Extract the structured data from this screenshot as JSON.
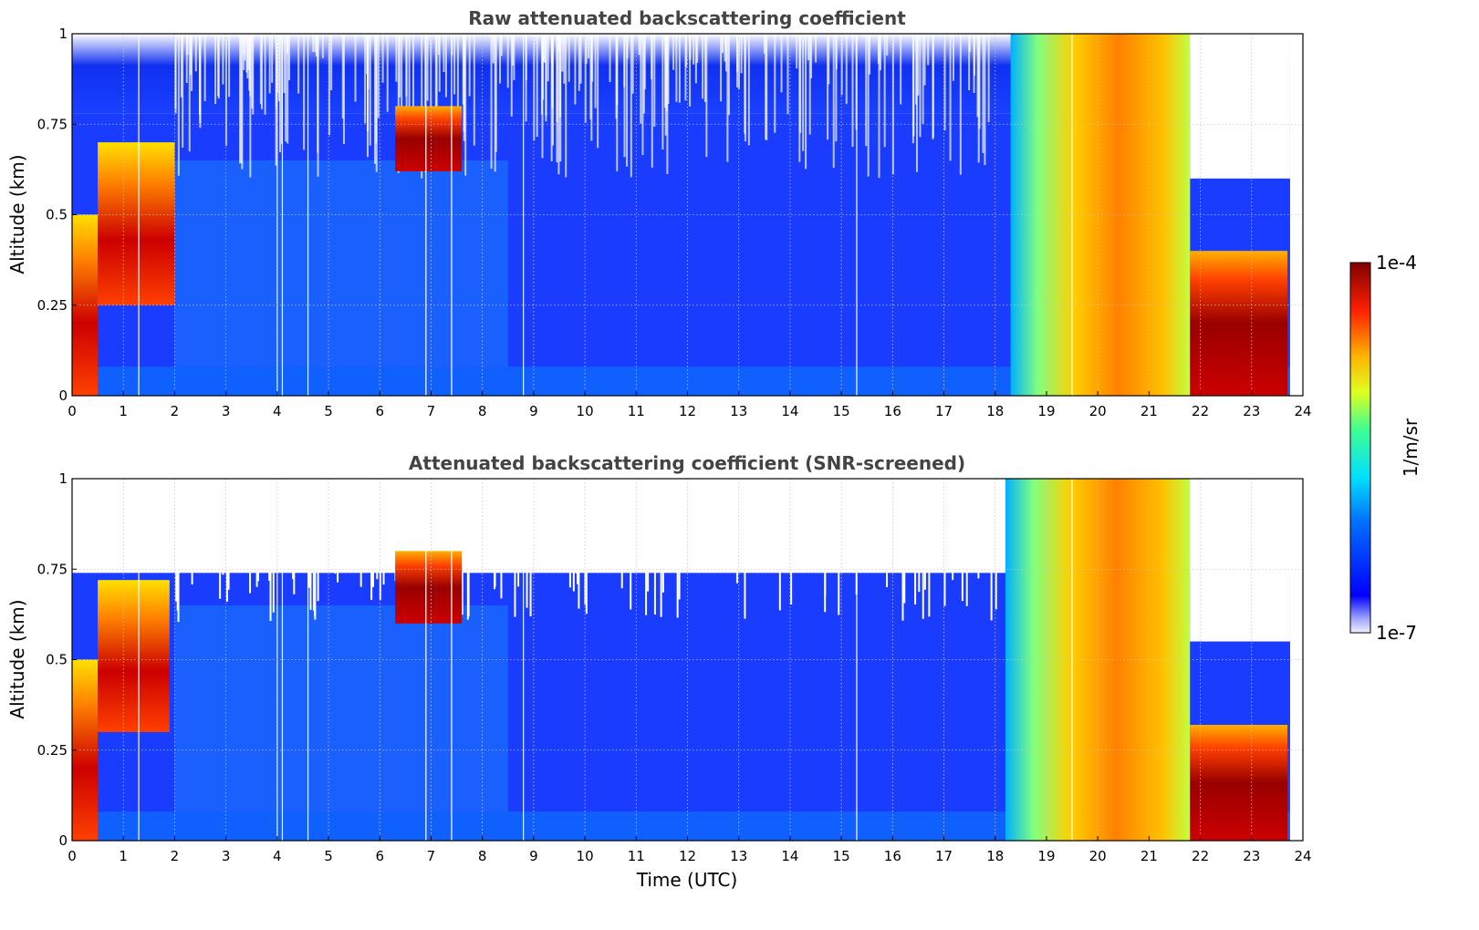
{
  "chart_data": [
    {
      "type": "heatmap",
      "title": "Raw attenuated backscattering coefficient",
      "xlabel": "",
      "ylabel": "Altitude (km)",
      "xlim": [
        0,
        24
      ],
      "ylim": [
        0,
        1
      ],
      "x_ticks": [
        "0",
        "1",
        "2",
        "3",
        "4",
        "5",
        "6",
        "7",
        "8",
        "9",
        "10",
        "11",
        "12",
        "13",
        "14",
        "15",
        "16",
        "17",
        "18",
        "19",
        "20",
        "21",
        "22",
        "23",
        "24"
      ],
      "y_ticks": [
        "0",
        "0.25",
        "0.5",
        "0.75",
        "1"
      ],
      "grid": true,
      "color_scale": "log",
      "data_gaps_hours": [
        1.3,
        4.0,
        4.1,
        4.6,
        6.9,
        7.4,
        8.8,
        15.3,
        19.5
      ],
      "layers": [
        {
          "x": [
            0,
            0.5
          ],
          "y": [
            0,
            0.5
          ],
          "level": "high"
        },
        {
          "x": [
            0.5,
            2.0
          ],
          "y": [
            0.25,
            0.7
          ],
          "level": "high"
        },
        {
          "x": [
            6.3,
            7.6
          ],
          "y": [
            0.62,
            0.8
          ],
          "level": "high"
        },
        {
          "x": [
            18.3,
            21.8
          ],
          "y": [
            0,
            1
          ],
          "level": "high"
        },
        {
          "x": [
            21.8,
            23.7
          ],
          "y": [
            0,
            0.4
          ],
          "level": "high"
        }
      ]
    },
    {
      "type": "heatmap",
      "title": "Attenuated backscattering coefficient (SNR-screened)",
      "xlabel": "Time (UTC)",
      "ylabel": "Altitude (km)",
      "xlim": [
        0,
        24
      ],
      "ylim": [
        0,
        1
      ],
      "x_ticks": [
        "0",
        "1",
        "2",
        "3",
        "4",
        "5",
        "6",
        "7",
        "8",
        "9",
        "10",
        "11",
        "12",
        "13",
        "14",
        "15",
        "16",
        "17",
        "18",
        "19",
        "20",
        "21",
        "22",
        "23",
        "24"
      ],
      "y_ticks": [
        "0",
        "0.25",
        "0.5",
        "0.75",
        "1"
      ],
      "grid": true,
      "color_scale": "log",
      "data_gaps_hours": [
        1.3,
        4.0,
        4.1,
        4.6,
        6.9,
        7.4,
        8.8,
        15.3,
        19.5
      ],
      "layers": [
        {
          "x": [
            0,
            0.5
          ],
          "y": [
            0,
            0.5
          ],
          "level": "high"
        },
        {
          "x": [
            0.5,
            1.9
          ],
          "y": [
            0.3,
            0.72
          ],
          "level": "high"
        },
        {
          "x": [
            6.3,
            7.6
          ],
          "y": [
            0.6,
            0.8
          ],
          "level": "high"
        },
        {
          "x": [
            18.2,
            21.8
          ],
          "y": [
            0,
            1
          ],
          "level": "high"
        },
        {
          "x": [
            21.8,
            23.7
          ],
          "y": [
            0,
            0.32
          ],
          "level": "high"
        }
      ]
    }
  ],
  "colorbar": {
    "label": "1/m/sr",
    "max_label": "1e-4",
    "min_label": "1e-7",
    "range": [
      1e-07,
      0.0001
    ],
    "colormap": "jet"
  }
}
